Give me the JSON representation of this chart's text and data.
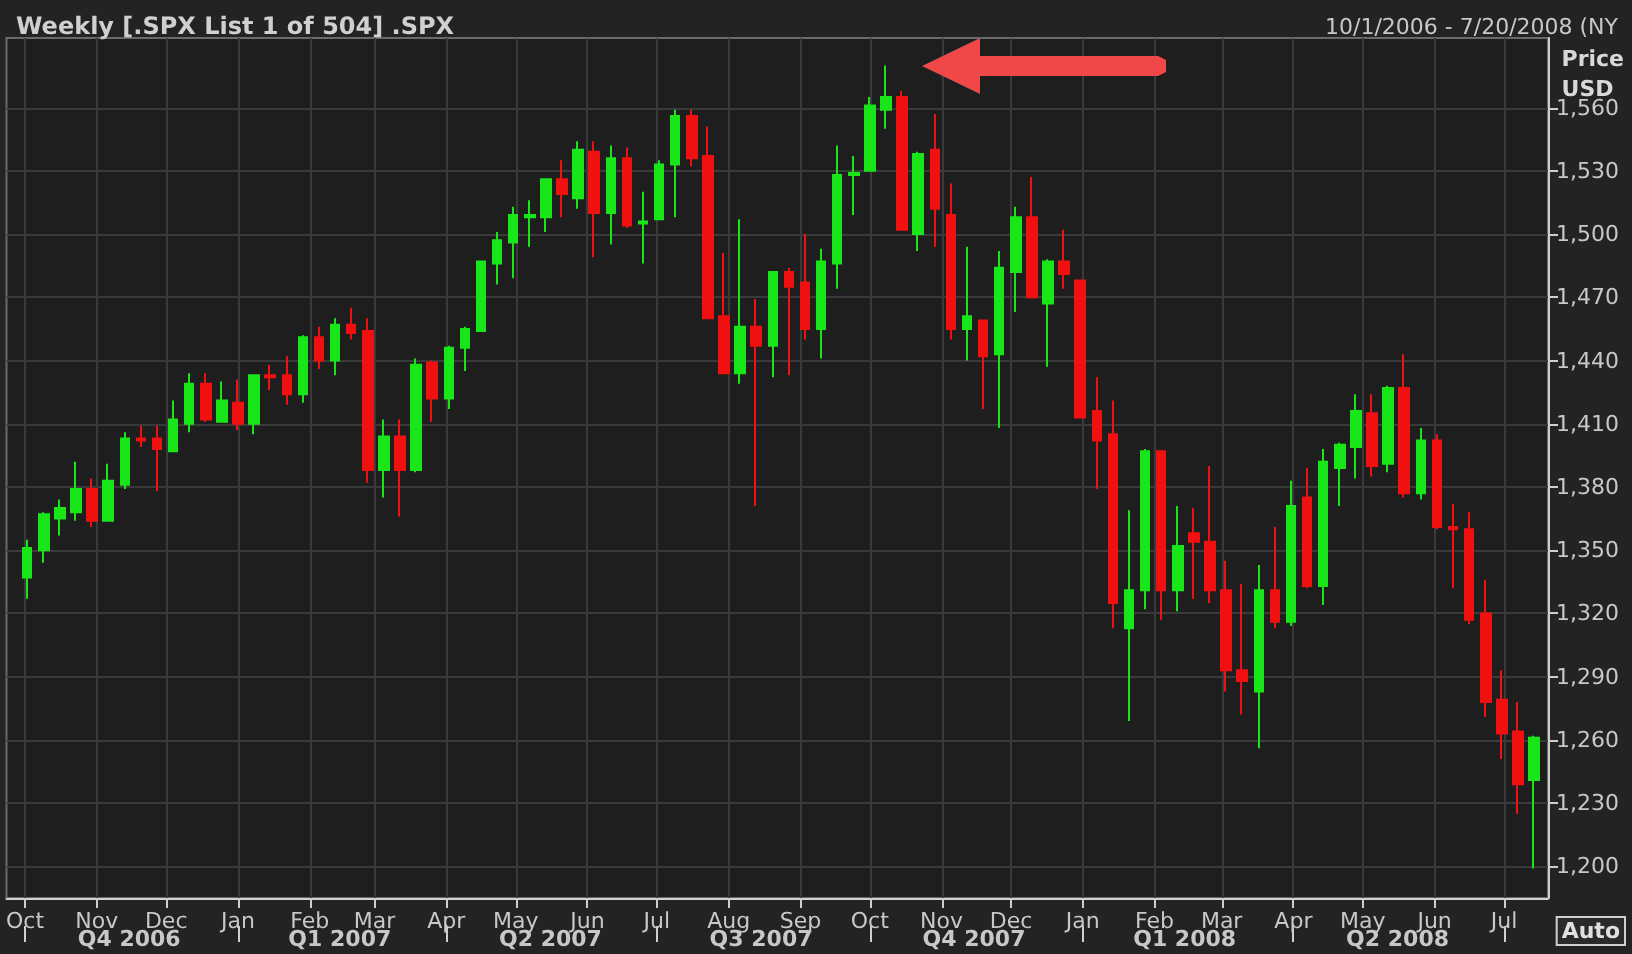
{
  "chart_data": {
    "type": "candlestick",
    "title": "Weekly [.SPX List 1 of 504] .SPX",
    "subtitle": "10/1/2006 - 7/20/2008 (NY",
    "ylabel": "Price USD",
    "annotations": [
      "Auto"
    ],
    "colors": [
      "#19e619",
      "#19e619",
      "#19e619",
      "#19e619",
      "#f01010",
      "#19e619",
      "#19e619",
      "#f01010",
      "#f01010",
      "#19e619",
      "#19e619",
      "#f01010",
      "#19e619",
      "#f01010",
      "#19e619",
      "#f01010",
      "#f01010",
      "#19e619",
      "#f01010",
      "#19e619",
      "#f01010",
      "#f01010",
      "#19e619",
      "#f01010",
      "#19e619",
      "#f01010",
      "#19e619",
      "#19e619",
      "#19e619",
      "#19e619",
      "#19e619",
      "#19e619",
      "#19e619",
      "#f01010",
      "#19e619",
      "#f01010",
      "#19e619",
      "#f01010",
      "#19e619",
      "#19e619",
      "#19e619",
      "#f01010",
      "#f01010",
      "#f01010",
      "#19e619",
      "#f01010",
      "#19e619",
      "#f01010",
      "#f01010",
      "#19e619",
      "#19e619",
      "#19e619",
      "#19e619",
      "#19e619",
      "#f01010",
      "#19e619",
      "#f01010",
      "#f01010",
      "#19e619",
      "#f01010",
      "#19e619",
      "#19e619",
      "#f01010",
      "#19e619",
      "#f01010",
      "#f01010",
      "#f01010",
      "#f01010",
      "#19e619",
      "#19e619",
      "#f01010",
      "#19e619",
      "#f01010",
      "#f01010",
      "#f01010",
      "#f01010",
      "#19e619",
      "#f01010",
      "#19e619",
      "#f01010",
      "#19e619",
      "#19e619",
      "#19e619",
      "#f01010",
      "#19e619",
      "#f01010",
      "#19e619",
      "#f01010",
      "#f01010",
      "#f01010",
      "#f01010",
      "#f01010",
      "#f01010",
      "#19e619"
    ],
    "grid": true,
    "xlim": [
      "2006-09-23",
      "2008-07-20"
    ],
    "xticks": [
      {
        "value": "2006-10-01",
        "label": "Oct"
      },
      {
        "value": "2006-11-01",
        "label": "Nov"
      },
      {
        "value": "2006-12-01",
        "label": "Dec"
      },
      {
        "value": "2007-01-01",
        "label": "Jan"
      },
      {
        "value": "2007-02-01",
        "label": "Feb"
      },
      {
        "value": "2007-03-01",
        "label": "Mar"
      },
      {
        "value": "2007-04-01",
        "label": "Apr"
      },
      {
        "value": "2007-05-01",
        "label": "May"
      },
      {
        "value": "2007-06-01",
        "label": "Jun"
      },
      {
        "value": "2007-07-01",
        "label": "Jul"
      },
      {
        "value": "2007-08-01",
        "label": "Aug"
      },
      {
        "value": "2007-09-01",
        "label": "Sep"
      },
      {
        "value": "2007-10-01",
        "label": "Oct"
      },
      {
        "value": "2007-11-01",
        "label": "Nov"
      },
      {
        "value": "2007-12-01",
        "label": "Dec"
      },
      {
        "value": "2008-01-01",
        "label": "Jan"
      },
      {
        "value": "2008-02-01",
        "label": "Feb"
      },
      {
        "value": "2008-03-01",
        "label": "Mar"
      },
      {
        "value": "2008-04-01",
        "label": "Apr"
      },
      {
        "value": "2008-05-01",
        "label": "May"
      },
      {
        "value": "2008-06-01",
        "label": "Jun"
      },
      {
        "value": "2008-07-01",
        "label": "Jul"
      }
    ],
    "x2lim": [
      "2006-09-23",
      "2008-07-20"
    ],
    "x2ticks": [
      {
        "value": "2006-10-01",
        "label": null
      },
      {
        "value": "2006-11-15",
        "label": "Q4 2006"
      },
      {
        "value": "2007-01-01",
        "label": null
      },
      {
        "value": "2007-02-14",
        "label": "Q1 2007"
      },
      {
        "value": "2007-04-01",
        "label": null
      },
      {
        "value": "2007-05-16",
        "label": "Q2 2007"
      },
      {
        "value": "2007-07-01",
        "label": null
      },
      {
        "value": "2007-08-15",
        "label": "Q3 2007"
      },
      {
        "value": "2007-10-01",
        "label": null
      },
      {
        "value": "2007-11-15",
        "label": "Q4 2007"
      },
      {
        "value": "2008-01-01",
        "label": null
      },
      {
        "value": "2008-02-14",
        "label": "Q1 2008"
      },
      {
        "value": "2008-04-01",
        "label": null
      },
      {
        "value": "2008-05-16",
        "label": "Q2 2008"
      },
      {
        "value": "2008-07-01",
        "label": null
      }
    ],
    "ylim": [
      1185,
      1593
    ],
    "yticks": [
      {
        "value": 1200,
        "label": "1,200"
      },
      {
        "value": 1230,
        "label": "1,230"
      },
      {
        "value": 1260,
        "label": "1,260"
      },
      {
        "value": 1290,
        "label": "1,290"
      },
      {
        "value": 1320,
        "label": "1,320"
      },
      {
        "value": 1350,
        "label": "1,350"
      },
      {
        "value": 1380,
        "label": "1,380"
      },
      {
        "value": 1410,
        "label": "1,410"
      },
      {
        "value": 1440,
        "label": "1,440"
      },
      {
        "value": 1470,
        "label": "1,470"
      },
      {
        "value": 1500,
        "label": "1,500"
      },
      {
        "value": 1530,
        "label": "1,530"
      },
      {
        "value": 1560,
        "label": "1,560"
      }
    ],
    "x": [
      "2006-10-02",
      "2006-10-09",
      "2006-10-16",
      "2006-10-23",
      "2006-10-30",
      "2006-11-06",
      "2006-11-13",
      "2006-11-20",
      "2006-11-27",
      "2006-12-04",
      "2006-12-11",
      "2006-12-18",
      "2006-12-25",
      "2007-01-01",
      "2007-01-08",
      "2007-01-15",
      "2007-01-22",
      "2007-01-29",
      "2007-02-05",
      "2007-02-12",
      "2007-02-19",
      "2007-02-26",
      "2007-03-05",
      "2007-03-12",
      "2007-03-19",
      "2007-03-26",
      "2007-04-02",
      "2007-04-09",
      "2007-04-16",
      "2007-04-23",
      "2007-04-30",
      "2007-05-07",
      "2007-05-14",
      "2007-05-21",
      "2007-05-28",
      "2007-06-04",
      "2007-06-11",
      "2007-06-18",
      "2007-06-25",
      "2007-07-02",
      "2007-07-09",
      "2007-07-16",
      "2007-07-23",
      "2007-07-30",
      "2007-08-06",
      "2007-08-13",
      "2007-08-20",
      "2007-08-27",
      "2007-09-03",
      "2007-09-10",
      "2007-09-17",
      "2007-09-24",
      "2007-10-01",
      "2007-10-08",
      "2007-10-15",
      "2007-10-22",
      "2007-10-29",
      "2007-11-05",
      "2007-11-12",
      "2007-11-19",
      "2007-11-26",
      "2007-12-03",
      "2007-12-10",
      "2007-12-17",
      "2007-12-24",
      "2007-12-31",
      "2008-01-07",
      "2008-01-14",
      "2008-01-21",
      "2008-01-28",
      "2008-02-04",
      "2008-02-11",
      "2008-02-18",
      "2008-02-25",
      "2008-03-03",
      "2008-03-10",
      "2008-03-17",
      "2008-03-24",
      "2008-03-31",
      "2008-04-07",
      "2008-04-14",
      "2008-04-21",
      "2008-04-28",
      "2008-05-05",
      "2008-05-12",
      "2008-05-19",
      "2008-05-26",
      "2008-06-02",
      "2008-06-09",
      "2008-06-16",
      "2008-06-23",
      "2008-06-30",
      "2008-07-07",
      "2008-07-14"
    ],
    "ohlc": [
      [
        1337,
        1355,
        1327,
        1351
      ],
      [
        1350,
        1368,
        1344,
        1367
      ],
      [
        1365,
        1374,
        1357,
        1370
      ],
      [
        1368,
        1392,
        1364,
        1379
      ],
      [
        1379,
        1384,
        1361,
        1364
      ],
      [
        1364,
        1391,
        1364,
        1383
      ],
      [
        1381,
        1406,
        1379,
        1403
      ],
      [
        1403,
        1409,
        1399,
        1402
      ],
      [
        1403,
        1409,
        1378,
        1398
      ],
      [
        1397,
        1421,
        1397,
        1412
      ],
      [
        1410,
        1434,
        1406,
        1429
      ],
      [
        1429,
        1434,
        1411,
        1412
      ],
      [
        1411,
        1430,
        1411,
        1421
      ],
      [
        1420,
        1431,
        1407,
        1410
      ],
      [
        1410,
        1433,
        1405,
        1433
      ],
      [
        1433,
        1438,
        1426,
        1432
      ],
      [
        1433,
        1442,
        1419,
        1424
      ],
      [
        1424,
        1452,
        1420,
        1451
      ],
      [
        1451,
        1456,
        1436,
        1440
      ],
      [
        1440,
        1460,
        1433,
        1457
      ],
      [
        1457,
        1465,
        1450,
        1453
      ],
      [
        1454,
        1460,
        1382,
        1388
      ],
      [
        1388,
        1412,
        1375,
        1404
      ],
      [
        1404,
        1412,
        1366,
        1388
      ],
      [
        1388,
        1441,
        1387,
        1438
      ],
      [
        1439,
        1440,
        1411,
        1422
      ],
      [
        1422,
        1447,
        1417,
        1446
      ],
      [
        1446,
        1456,
        1435,
        1455
      ],
      [
        1454,
        1487,
        1454,
        1487
      ],
      [
        1486,
        1501,
        1476,
        1497
      ],
      [
        1496,
        1513,
        1479,
        1509
      ],
      [
        1508,
        1516,
        1494,
        1509
      ],
      [
        1508,
        1526,
        1501,
        1526
      ],
      [
        1526,
        1535,
        1508,
        1519
      ],
      [
        1517,
        1544,
        1512,
        1540
      ],
      [
        1539,
        1544,
        1489,
        1510
      ],
      [
        1510,
        1542,
        1495,
        1536
      ],
      [
        1536,
        1541,
        1503,
        1504
      ],
      [
        1505,
        1520,
        1486,
        1506
      ],
      [
        1507,
        1535,
        1507,
        1533
      ],
      [
        1533,
        1559,
        1508,
        1556
      ],
      [
        1556,
        1559,
        1532,
        1536
      ],
      [
        1537,
        1551,
        1460,
        1460
      ],
      [
        1461,
        1491,
        1434,
        1434
      ],
      [
        1434,
        1507,
        1429,
        1456
      ],
      [
        1456,
        1469,
        1371,
        1447
      ],
      [
        1447,
        1482,
        1432,
        1482
      ],
      [
        1482,
        1484,
        1433,
        1475
      ],
      [
        1477,
        1500,
        1450,
        1455
      ],
      [
        1455,
        1493,
        1441,
        1487
      ],
      [
        1486,
        1542,
        1474,
        1528
      ],
      [
        1528,
        1537,
        1509,
        1529
      ],
      [
        1530,
        1565,
        1530,
        1561
      ],
      [
        1559,
        1580,
        1550,
        1565
      ],
      [
        1565,
        1568,
        1502,
        1502
      ],
      [
        1500,
        1539,
        1492,
        1538
      ],
      [
        1540,
        1557,
        1494,
        1512
      ],
      [
        1509,
        1524,
        1450,
        1455
      ],
      [
        1455,
        1494,
        1440,
        1461
      ],
      [
        1459,
        1459,
        1417,
        1442
      ],
      [
        1443,
        1492,
        1408,
        1484
      ],
      [
        1482,
        1513,
        1463,
        1508
      ],
      [
        1508,
        1527,
        1470,
        1470
      ],
      [
        1467,
        1488,
        1437,
        1487
      ],
      [
        1487,
        1502,
        1474,
        1481
      ],
      [
        1478,
        1478,
        1413,
        1413
      ],
      [
        1416,
        1432,
        1379,
        1402
      ],
      [
        1405,
        1421,
        1313,
        1325
      ],
      [
        1313,
        1369,
        1269,
        1331
      ],
      [
        1331,
        1398,
        1322,
        1397
      ],
      [
        1397,
        1397,
        1317,
        1331
      ],
      [
        1331,
        1371,
        1321,
        1352
      ],
      [
        1358,
        1370,
        1327,
        1354
      ],
      [
        1354,
        1390,
        1325,
        1331
      ],
      [
        1331,
        1345,
        1283,
        1293
      ],
      [
        1293,
        1334,
        1272,
        1288
      ],
      [
        1283,
        1343,
        1256,
        1331
      ],
      [
        1331,
        1361,
        1313,
        1316
      ],
      [
        1316,
        1383,
        1314,
        1371
      ],
      [
        1375,
        1389,
        1332,
        1333
      ],
      [
        1333,
        1398,
        1324,
        1392
      ],
      [
        1389,
        1401,
        1371,
        1400
      ],
      [
        1399,
        1424,
        1384,
        1416
      ],
      [
        1415,
        1424,
        1385,
        1390
      ],
      [
        1391,
        1428,
        1387,
        1427
      ],
      [
        1427,
        1443,
        1375,
        1377
      ],
      [
        1377,
        1408,
        1374,
        1402
      ],
      [
        1402,
        1405,
        1360,
        1361
      ],
      [
        1361,
        1372,
        1332,
        1360
      ],
      [
        1360,
        1368,
        1315,
        1317
      ],
      [
        1320,
        1336,
        1271,
        1278
      ],
      [
        1279,
        1293,
        1251,
        1263
      ],
      [
        1264,
        1278,
        1225,
        1239
      ],
      [
        1241,
        1262,
        1199,
        1261
      ]
    ]
  }
}
